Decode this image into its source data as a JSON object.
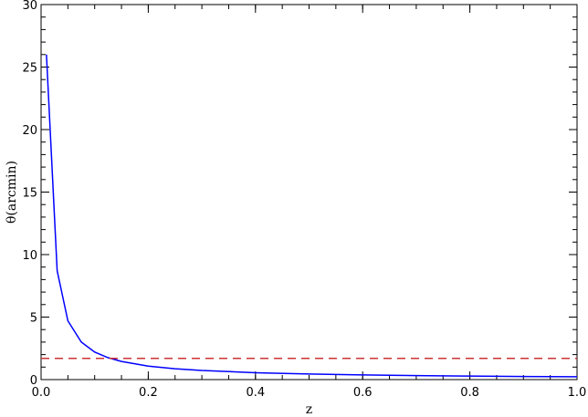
{
  "chart_data": {
    "type": "line",
    "title": "",
    "xlabel": "z",
    "ylabel": "θ(arcmin)",
    "xlim": [
      0.0,
      1.0
    ],
    "ylim": [
      0,
      30
    ],
    "grid": false,
    "x_ticks": [
      0.0,
      0.2,
      0.4,
      0.6,
      0.8,
      1.0
    ],
    "x_tick_labels": [
      "0.0",
      "0.2",
      "0.4",
      "0.6",
      "0.8",
      "1.0"
    ],
    "y_ticks": [
      0,
      5,
      10,
      15,
      20,
      25,
      30
    ],
    "y_tick_labels": [
      "0",
      "5",
      "10",
      "15",
      "20",
      "25",
      "30"
    ],
    "series": [
      {
        "color": "#0000ff",
        "style": "solid",
        "x": [
          0.01,
          0.03,
          0.05,
          0.075,
          0.1,
          0.125,
          0.15,
          0.2,
          0.25,
          0.3,
          0.4,
          0.5,
          0.6,
          0.7,
          0.8,
          0.9,
          1.0
        ],
        "y": [
          26.0,
          8.7,
          4.7,
          3.0,
          2.2,
          1.75,
          1.45,
          1.08,
          0.87,
          0.73,
          0.55,
          0.45,
          0.37,
          0.32,
          0.28,
          0.25,
          0.23
        ]
      },
      {
        "color": "#cc3333",
        "style": "dashed",
        "x": [
          0.0,
          1.0
        ],
        "y": [
          1.7,
          1.7
        ]
      }
    ]
  }
}
